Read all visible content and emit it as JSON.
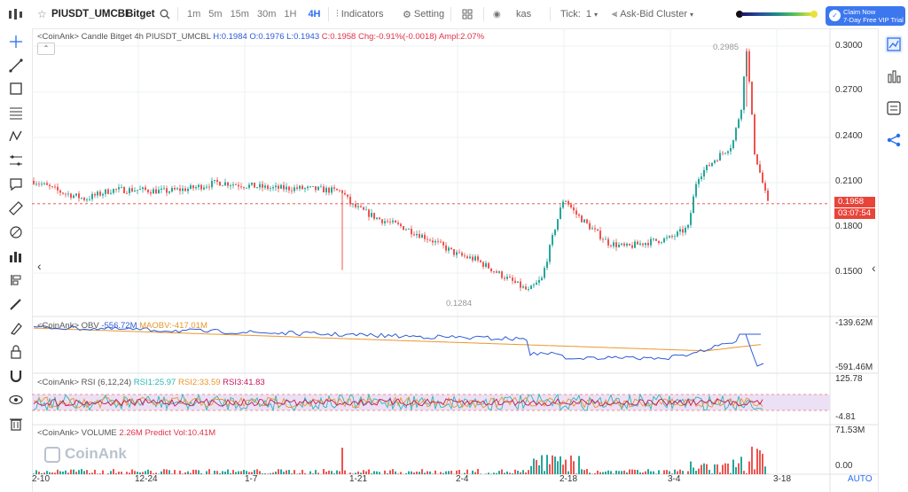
{
  "toolbar": {
    "symbol": "PIUSDT_UMCBL",
    "exchange": "Bitget",
    "intervals": [
      "1m",
      "5m",
      "15m",
      "30m",
      "1H",
      "4H"
    ],
    "active_interval": "4H",
    "indicators": "Indicators",
    "setting": "Setting",
    "source": "kas",
    "tick_label": "Tick:",
    "tick_value": "1",
    "cluster": "Ask-Bid Cluster",
    "promo_line1": "Claim Now",
    "promo_line2": "7-Day Free VIP Trial"
  },
  "legend": {
    "main_prefix": "<CoinAnk> Candle  Bitget 4h PIUSDT_UMCBL",
    "h": "H:0.1984",
    "o": "O:0.1976",
    "l": "L:0.1943",
    "c": "C:0.1958",
    "chg": "Chg:-0.91%(-0.0018)",
    "ampl": "Ampl:2.07%",
    "obv_prefix": "<CoinAnk> OBV",
    "obv": "-556.72M",
    "maobv": "MAOBV:-417.01M",
    "rsi_prefix": "<CoinAnk> RSI  (6,12,24)",
    "rsi1": "RSI1:25.97",
    "rsi2": "RSI2:33.59",
    "rsi3": "RSI3:41.83",
    "vol_prefix": "<CoinAnk> VOLUME",
    "vol": "2.26M",
    "predict": "Predict Vol:10.41M"
  },
  "price_axis": [
    "0.3000",
    "0.2700",
    "0.2400",
    "0.2100",
    "0.1800",
    "0.1500"
  ],
  "obv_axis": [
    "-139.62M",
    "-591.46M"
  ],
  "rsi_axis": [
    "125.78",
    "-4.81"
  ],
  "vol_axis": [
    "71.53M",
    "0.00"
  ],
  "x_axis": [
    "2-10",
    "12-24",
    "1-7",
    "1-21",
    "2-4",
    "2-18",
    "3-4",
    "3-18"
  ],
  "current_price": "0.1958",
  "countdown": "03:07:54",
  "high_marker": "0.2985",
  "low_marker": "0.1284",
  "watermark": "CoinAnk",
  "auto": "AUTO",
  "colors": {
    "up": "#26a69a",
    "down": "#ef5350",
    "accent": "#2a6ef0"
  }
}
